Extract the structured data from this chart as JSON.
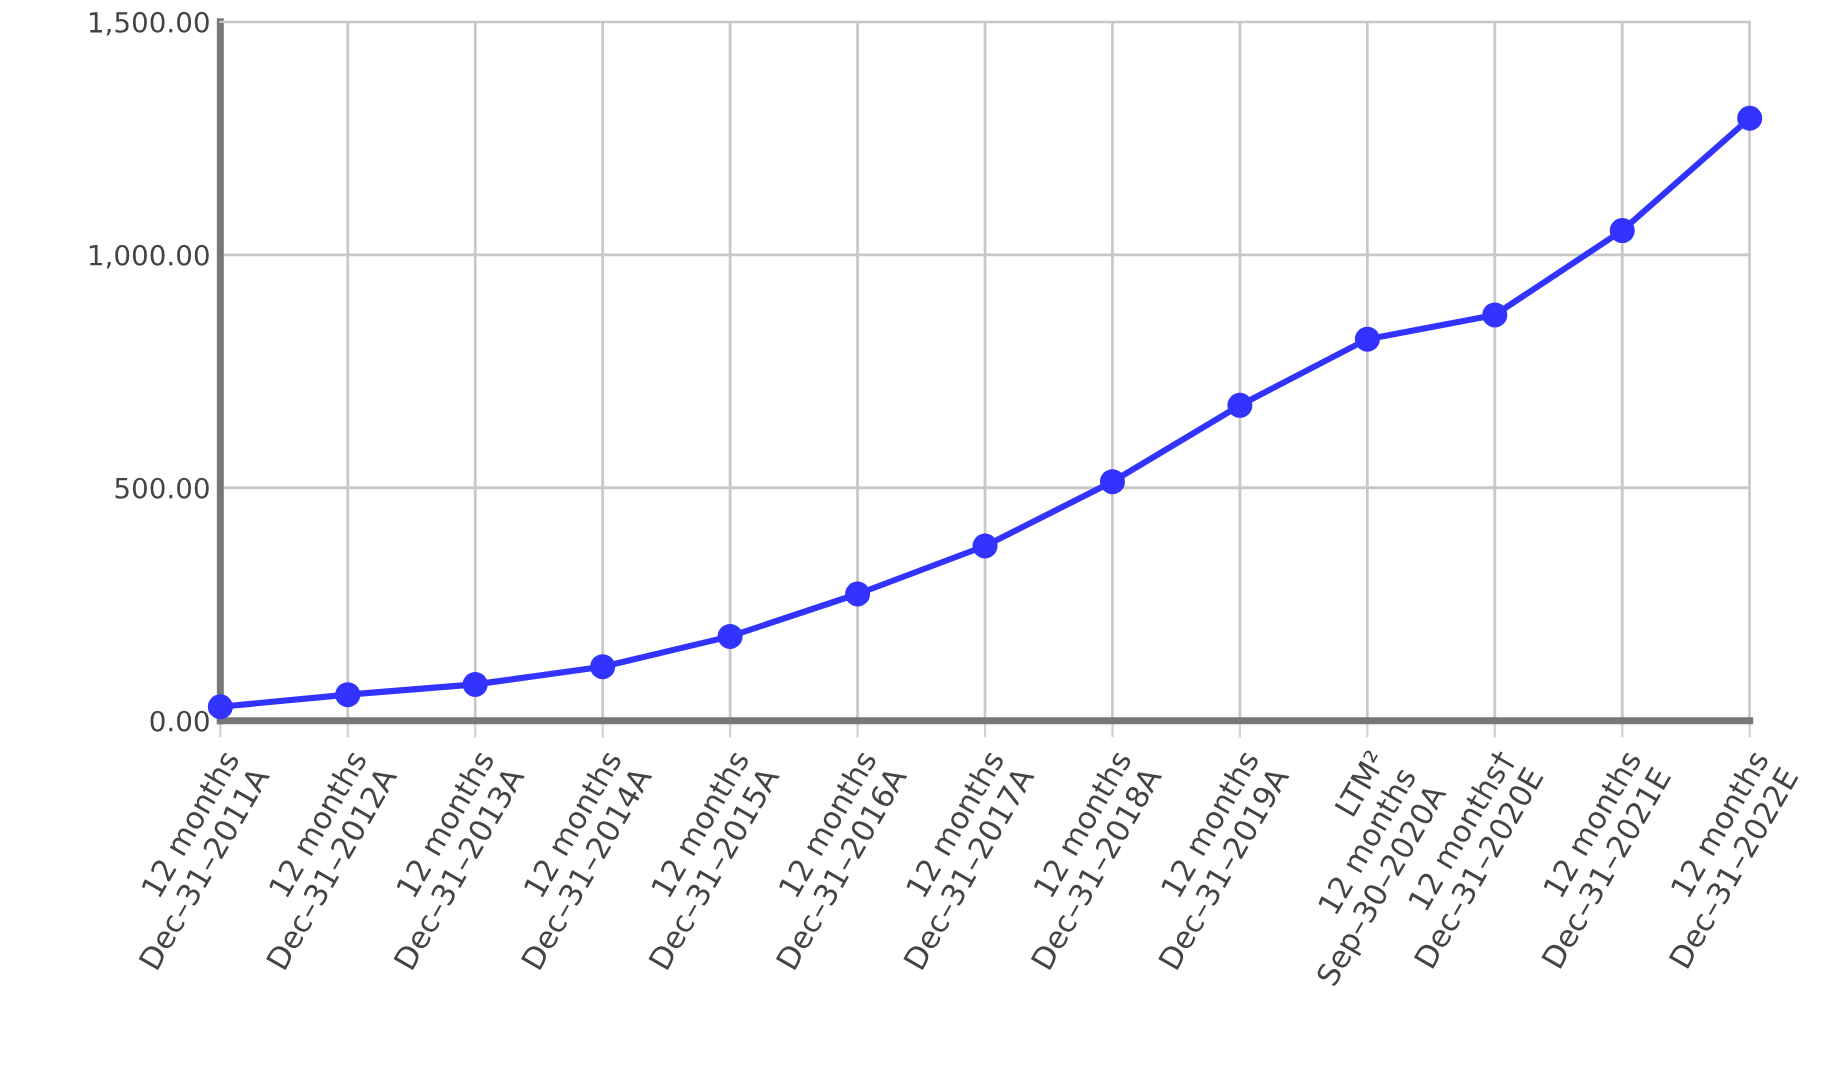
{
  "chart_data": {
    "type": "line",
    "categories": [
      "12 months\nDec–31–2011A",
      "12 months\nDec–31–2012A",
      "12 months\nDec–31–2013A",
      "12 months\nDec–31–2014A",
      "12 months\nDec–31–2015A",
      "12 months\nDec–31–2016A",
      "12 months\nDec–31–2017A",
      "12 months\nDec–31–2018A",
      "12 months\nDec–31–2019A",
      "LTM²\n12 months\nSep–30–2020A",
      "12 months†\nDec–31–2020E",
      "12 months\nDec–31–2021E",
      "12 months\nDec–31–2022E"
    ],
    "series": [
      {
        "color": "#3333ff",
        "values": [
          30,
          56,
          78,
          116,
          181,
          272,
          375,
          513,
          677,
          819,
          871,
          1052,
          1293
        ]
      }
    ],
    "ylim": [
      0,
      1500
    ],
    "yticks": [
      {
        "value": 0,
        "label": "0.00"
      },
      {
        "value": 500,
        "label": "500.00"
      },
      {
        "value": 1000,
        "label": "1,000.00"
      },
      {
        "value": 1500,
        "label": "1,500.00"
      }
    ],
    "grid": true,
    "marker": "circle",
    "line_style": "solid"
  }
}
